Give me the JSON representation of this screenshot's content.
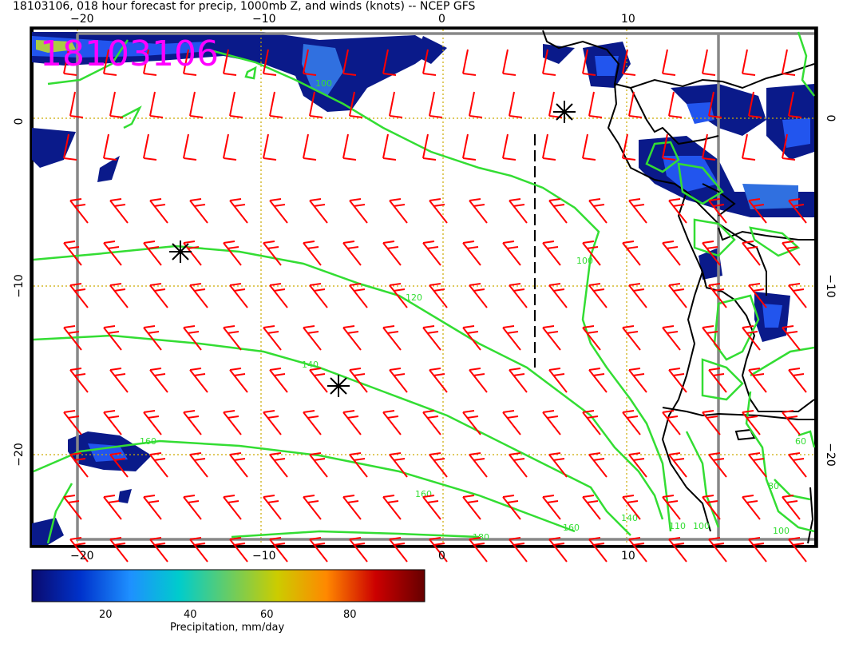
{
  "title": "18103106, 018 hour forecast for precip, 1000mb Z, and winds (knots) -- NCEP GFS",
  "date_stamp": "18103106",
  "axes": {
    "lon_ticks": [
      "−20",
      "−10",
      "0",
      "10"
    ],
    "lat_ticks": [
      "0",
      "−10",
      "−20"
    ]
  },
  "contour_labels": [
    "100",
    "120",
    "140",
    "160",
    "160",
    "160",
    "180",
    "140",
    "110",
    "100",
    "100",
    "60",
    "80",
    "100"
  ],
  "colorbar": {
    "label": "Precipitation, mm/day",
    "ticks": [
      "20",
      "40",
      "60",
      "80"
    ],
    "colors": [
      "#0a0a6e",
      "#0033cc",
      "#1e90ff",
      "#00cccc",
      "#66cc66",
      "#cccc00",
      "#ff8800",
      "#cc0000",
      "#660000"
    ]
  },
  "colors": {
    "contour": "#33dd33",
    "wind_barb": "#ff0000",
    "coast": "#000000",
    "grid": "#ccaa00",
    "frame": "#888888"
  }
}
